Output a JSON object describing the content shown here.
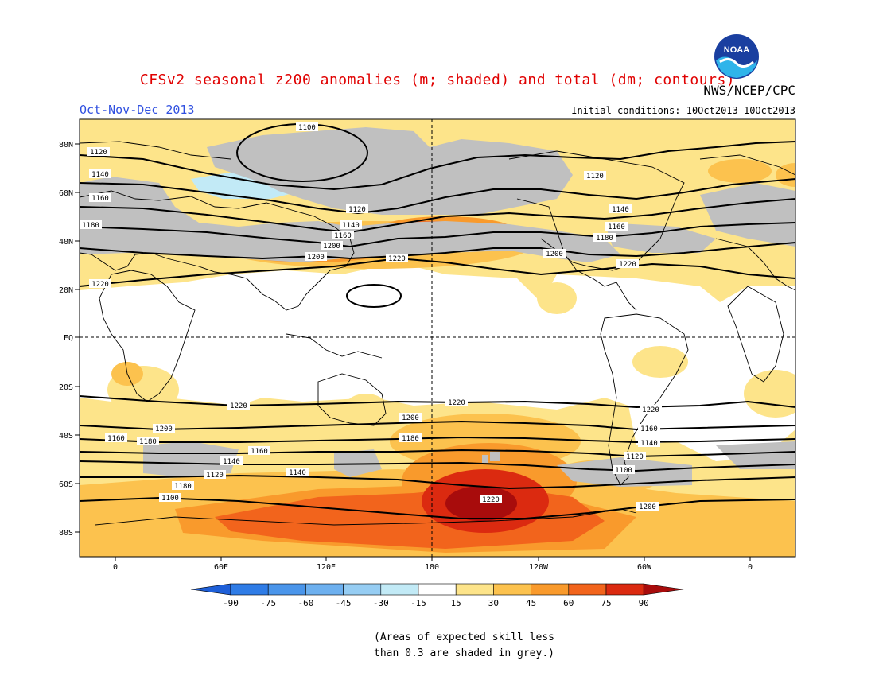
{
  "title": "CFSv2 seasonal z200 anomalies (m; shaded) and total (dm; contours)",
  "agency": "NWS/NCEP/CPC",
  "logo_text": "NOAA",
  "period": "Oct-Nov-Dec 2013",
  "initial_conditions": "Initial conditions: 10Oct2013-10Oct2013",
  "lat_labels": [
    "80N",
    "60N",
    "40N",
    "20N",
    "EQ",
    "20S",
    "40S",
    "60S",
    "80S"
  ],
  "lon_labels": [
    "0",
    "60E",
    "120E",
    "180",
    "120W",
    "60W",
    "0"
  ],
  "colorbar": {
    "ticks": [
      "-90",
      "-75",
      "-60",
      "-45",
      "-30",
      "-15",
      "15",
      "30",
      "45",
      "60",
      "75",
      "90"
    ],
    "colors": [
      "#1e5fd8",
      "#2f7ce6",
      "#4a95ea",
      "#6db0ef",
      "#96cdf3",
      "#c2eaf6",
      "#ffffff",
      "#fde48a",
      "#fcc24e",
      "#f99a2c",
      "#f2641c",
      "#db2a10",
      "#a80c0c"
    ]
  },
  "contour_labels": {
    "nh": [
      "1100",
      "1120",
      "1140",
      "1160",
      "1180",
      "1120",
      "1140",
      "1160",
      "1200",
      "1220",
      "1200",
      "1220",
      "1120",
      "1140",
      "1160",
      "1180",
      "1200",
      "1220",
      "1220"
    ],
    "sh": [
      "1220",
      "1200",
      "1180",
      "1160",
      "1140",
      "1120",
      "1100",
      "1220",
      "1200",
      "1180",
      "1160",
      "1140",
      "1120",
      "1100",
      "1220",
      "1200",
      "1180",
      "1160",
      "1140"
    ]
  },
  "note": [
    "(Areas of expected skill less",
    "than 0.3 are shaded in grey.)"
  ]
}
